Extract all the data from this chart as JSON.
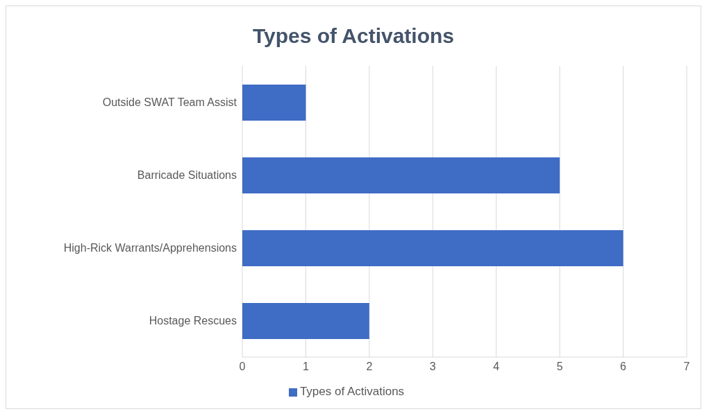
{
  "chart_data": {
    "type": "bar",
    "orientation": "horizontal",
    "title": "Types of Activations",
    "categories": [
      "Outside SWAT Team Assist",
      "Barricade Situations",
      "High-Rick Warrants/Apprehensions",
      "Hostage Rescues"
    ],
    "series": [
      {
        "name": "Types of Activations",
        "color": "#3f6cc4",
        "values": [
          1,
          5,
          6,
          2
        ]
      }
    ],
    "xlim": [
      0,
      7
    ],
    "xticks": [
      0,
      1,
      2,
      3,
      4,
      5,
      6,
      7
    ],
    "grid": "x",
    "legend": "bottom"
  }
}
